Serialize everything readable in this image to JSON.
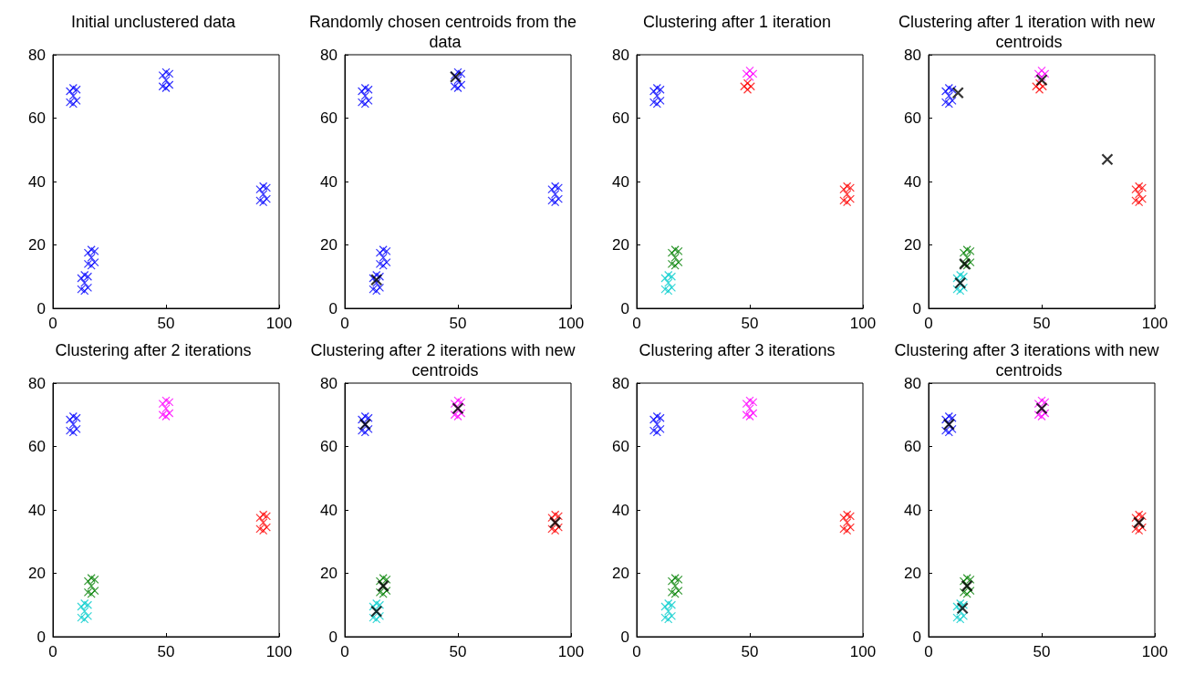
{
  "chart_data": [
    {
      "type": "scatter",
      "title": "Initial unclustered data",
      "xlim": [
        0,
        100
      ],
      "xticks": [
        0,
        50,
        100
      ],
      "ylim": [
        0,
        80
      ],
      "yticks": [
        0,
        20,
        40,
        60,
        80
      ],
      "marker": "cross",
      "series": [
        {
          "color": "#0000ff",
          "x": [
            9,
            7.5,
            10.5,
            7.5,
            10.5,
            9,
            9,
            50,
            48.5,
            51.5,
            48.5,
            51.5,
            50,
            50,
            93,
            91.5,
            94.5,
            91.5,
            94.5,
            93,
            93,
            17,
            15.5,
            18.5,
            15.5,
            18.5,
            17,
            17,
            14,
            12.5,
            15.5,
            12.5,
            15.5,
            14,
            14
          ],
          "values": [
            67,
            65,
            69,
            68.5,
            65.5,
            69.5,
            64.5,
            72,
            70,
            74,
            73.5,
            70.5,
            74.5,
            69.5,
            36,
            34,
            38,
            37.5,
            34.5,
            38.5,
            33.5,
            16,
            14,
            18,
            17.5,
            14.5,
            18.5,
            13.5,
            8,
            6,
            10,
            9.5,
            6.5,
            10.5,
            5.5
          ]
        }
      ]
    },
    {
      "type": "scatter",
      "title": "Randomly chosen centroids from the data",
      "xlim": [
        0,
        100
      ],
      "xticks": [
        0,
        50,
        100
      ],
      "ylim": [
        0,
        80
      ],
      "yticks": [
        0,
        20,
        40,
        60,
        80
      ],
      "marker": "cross",
      "series": [
        {
          "color": "#0000ff",
          "x": [
            9,
            7.5,
            10.5,
            7.5,
            10.5,
            9,
            9,
            50,
            48.5,
            51.5,
            48.5,
            51.5,
            50,
            50,
            93,
            91.5,
            94.5,
            91.5,
            94.5,
            93,
            93,
            17,
            15.5,
            18.5,
            15.5,
            18.5,
            17,
            17,
            14,
            12.5,
            15.5,
            12.5,
            15.5,
            14,
            14
          ],
          "values": [
            67,
            65,
            69,
            68.5,
            65.5,
            69.5,
            64.5,
            72,
            70,
            74,
            73.5,
            70.5,
            74.5,
            69.5,
            36,
            34,
            38,
            37.5,
            34.5,
            38.5,
            33.5,
            16,
            14,
            18,
            17.5,
            14.5,
            18.5,
            13.5,
            8,
            6,
            10,
            9.5,
            6.5,
            10.5,
            5.5
          ]
        },
        {
          "color": "#000000",
          "x": [
            49,
            14
          ],
          "values": [
            73,
            9
          ]
        }
      ]
    },
    {
      "type": "scatter",
      "title": "Clustering after 1 iteration",
      "xlim": [
        0,
        100
      ],
      "xticks": [
        0,
        50,
        100
      ],
      "ylim": [
        0,
        80
      ],
      "yticks": [
        0,
        20,
        40,
        60,
        80
      ],
      "marker": "cross",
      "series": [
        {
          "color": "#0000ff",
          "x": [
            9,
            7.5,
            10.5,
            7.5,
            10.5,
            9,
            9
          ],
          "values": [
            67,
            65,
            69,
            68.5,
            65.5,
            69.5,
            64.5
          ]
        },
        {
          "color": "#ff00ff",
          "x": [
            50,
            48.5,
            51.5,
            50
          ],
          "values": [
            73,
            74,
            74,
            75
          ]
        },
        {
          "color": "#ff0000",
          "x": [
            49,
            47.5,
            50.5,
            49,
            93,
            91.5,
            94.5,
            91.5,
            94.5,
            93,
            93
          ],
          "values": [
            71,
            70,
            70,
            69,
            36,
            34,
            38,
            37.5,
            34.5,
            38.5,
            33.5
          ]
        },
        {
          "color": "#008000",
          "x": [
            17,
            15.5,
            18.5,
            15.5,
            18.5,
            17,
            17
          ],
          "values": [
            16,
            14,
            18,
            17.5,
            14.5,
            18.5,
            13.5
          ]
        },
        {
          "color": "#00cccc",
          "x": [
            14,
            12.5,
            15.5,
            12.5,
            15.5,
            14,
            14
          ],
          "values": [
            8,
            6,
            10,
            9.5,
            6.5,
            10.5,
            5.5
          ]
        }
      ]
    },
    {
      "type": "scatter",
      "title": "Clustering after 1 iteration with new centroids",
      "xlim": [
        0,
        100
      ],
      "xticks": [
        0,
        50,
        100
      ],
      "ylim": [
        0,
        80
      ],
      "yticks": [
        0,
        20,
        40,
        60,
        80
      ],
      "marker": "cross",
      "series": [
        {
          "color": "#0000ff",
          "x": [
            9,
            7.5,
            10.5,
            7.5,
            10.5,
            9,
            9
          ],
          "values": [
            67,
            65,
            69,
            68.5,
            65.5,
            69.5,
            64.5
          ]
        },
        {
          "color": "#ff00ff",
          "x": [
            50,
            48.5,
            51.5,
            50
          ],
          "values": [
            73,
            74,
            74,
            75
          ]
        },
        {
          "color": "#ff0000",
          "x": [
            49,
            47.5,
            50.5,
            49,
            93,
            91.5,
            94.5,
            91.5,
            94.5,
            93,
            93
          ],
          "values": [
            71,
            70,
            70,
            69,
            36,
            34,
            38,
            37.5,
            34.5,
            38.5,
            33.5
          ]
        },
        {
          "color": "#008000",
          "x": [
            17,
            15.5,
            18.5,
            15.5,
            18.5,
            17,
            17
          ],
          "values": [
            16,
            14,
            18,
            17.5,
            14.5,
            18.5,
            13.5
          ]
        },
        {
          "color": "#00cccc",
          "x": [
            14,
            12.5,
            15.5,
            12.5,
            15.5,
            14,
            14
          ],
          "values": [
            8,
            6,
            10,
            9.5,
            6.5,
            10.5,
            5.5
          ]
        },
        {
          "color": "#000000",
          "x": [
            13,
            50,
            79,
            16,
            14
          ],
          "values": [
            68,
            72,
            47,
            14,
            8
          ]
        }
      ]
    },
    {
      "type": "scatter",
      "title": "Clustering after 2 iterations",
      "xlim": [
        0,
        100
      ],
      "xticks": [
        0,
        50,
        100
      ],
      "ylim": [
        0,
        80
      ],
      "yticks": [
        0,
        20,
        40,
        60,
        80
      ],
      "marker": "cross",
      "series": [
        {
          "color": "#0000ff",
          "x": [
            9,
            7.5,
            10.5,
            7.5,
            10.5,
            9,
            9
          ],
          "values": [
            67,
            65,
            69,
            68.5,
            65.5,
            69.5,
            64.5
          ]
        },
        {
          "color": "#ff00ff",
          "x": [
            50,
            48.5,
            51.5,
            48.5,
            51.5,
            50,
            50
          ],
          "values": [
            72,
            70,
            74,
            73.5,
            70.5,
            74.5,
            69.5
          ]
        },
        {
          "color": "#ff0000",
          "x": [
            93,
            91.5,
            94.5,
            91.5,
            94.5,
            93,
            93
          ],
          "values": [
            36,
            34,
            38,
            37.5,
            34.5,
            38.5,
            33.5
          ]
        },
        {
          "color": "#008000",
          "x": [
            17,
            15.5,
            18.5,
            15.5,
            18.5,
            17,
            17
          ],
          "values": [
            16,
            14,
            18,
            17.5,
            14.5,
            18.5,
            13.5
          ]
        },
        {
          "color": "#00cccc",
          "x": [
            14,
            12.5,
            15.5,
            12.5,
            15.5,
            14,
            14
          ],
          "values": [
            8,
            6,
            10,
            9.5,
            6.5,
            10.5,
            5.5
          ]
        }
      ]
    },
    {
      "type": "scatter",
      "title": "Clustering after 2 iterations with new centroids",
      "xlim": [
        0,
        100
      ],
      "xticks": [
        0,
        50,
        100
      ],
      "ylim": [
        0,
        80
      ],
      "yticks": [
        0,
        20,
        40,
        60,
        80
      ],
      "marker": "cross",
      "series": [
        {
          "color": "#0000ff",
          "x": [
            9,
            7.5,
            10.5,
            7.5,
            10.5,
            9,
            9
          ],
          "values": [
            67,
            65,
            69,
            68.5,
            65.5,
            69.5,
            64.5
          ]
        },
        {
          "color": "#ff00ff",
          "x": [
            50,
            48.5,
            51.5,
            48.5,
            51.5,
            50,
            50
          ],
          "values": [
            72,
            70,
            74,
            73.5,
            70.5,
            74.5,
            69.5
          ]
        },
        {
          "color": "#ff0000",
          "x": [
            93,
            91.5,
            94.5,
            91.5,
            94.5,
            93,
            93
          ],
          "values": [
            36,
            34,
            38,
            37.5,
            34.5,
            38.5,
            33.5
          ]
        },
        {
          "color": "#008000",
          "x": [
            17,
            15.5,
            18.5,
            15.5,
            18.5,
            17,
            17
          ],
          "values": [
            16,
            14,
            18,
            17.5,
            14.5,
            18.5,
            13.5
          ]
        },
        {
          "color": "#00cccc",
          "x": [
            14,
            12.5,
            15.5,
            12.5,
            15.5,
            14,
            14
          ],
          "values": [
            8,
            6,
            10,
            9.5,
            6.5,
            10.5,
            5.5
          ]
        },
        {
          "color": "#000000",
          "x": [
            9,
            50,
            93,
            17,
            14
          ],
          "values": [
            67,
            72,
            36,
            16,
            8
          ]
        }
      ]
    },
    {
      "type": "scatter",
      "title": "Clustering after 3 iterations",
      "xlim": [
        0,
        100
      ],
      "xticks": [
        0,
        50,
        100
      ],
      "ylim": [
        0,
        80
      ],
      "yticks": [
        0,
        20,
        40,
        60,
        80
      ],
      "marker": "cross",
      "series": [
        {
          "color": "#0000ff",
          "x": [
            9,
            7.5,
            10.5,
            7.5,
            10.5,
            9,
            9
          ],
          "values": [
            67,
            65,
            69,
            68.5,
            65.5,
            69.5,
            64.5
          ]
        },
        {
          "color": "#ff00ff",
          "x": [
            50,
            48.5,
            51.5,
            48.5,
            51.5,
            50,
            50
          ],
          "values": [
            72,
            70,
            74,
            73.5,
            70.5,
            74.5,
            69.5
          ]
        },
        {
          "color": "#ff0000",
          "x": [
            93,
            91.5,
            94.5,
            91.5,
            94.5,
            93,
            93
          ],
          "values": [
            36,
            34,
            38,
            37.5,
            34.5,
            38.5,
            33.5
          ]
        },
        {
          "color": "#008000",
          "x": [
            17,
            15.5,
            18.5,
            15.5,
            18.5,
            17,
            17
          ],
          "values": [
            16,
            14,
            18,
            17.5,
            14.5,
            18.5,
            13.5
          ]
        },
        {
          "color": "#00cccc",
          "x": [
            14,
            12.5,
            15.5,
            12.5,
            15.5,
            14,
            14
          ],
          "values": [
            8,
            6,
            10,
            9.5,
            6.5,
            10.5,
            5.5
          ]
        }
      ]
    },
    {
      "type": "scatter",
      "title": "Clustering after 3 iterations with new centroids",
      "xlim": [
        0,
        100
      ],
      "xticks": [
        0,
        50,
        100
      ],
      "ylim": [
        0,
        80
      ],
      "yticks": [
        0,
        20,
        40,
        60,
        80
      ],
      "marker": "cross",
      "series": [
        {
          "color": "#0000ff",
          "x": [
            9,
            7.5,
            10.5,
            7.5,
            10.5,
            9,
            9
          ],
          "values": [
            67,
            65,
            69,
            68.5,
            65.5,
            69.5,
            64.5
          ]
        },
        {
          "color": "#ff00ff",
          "x": [
            50,
            48.5,
            51.5,
            48.5,
            51.5,
            50,
            50
          ],
          "values": [
            72,
            70,
            74,
            73.5,
            70.5,
            74.5,
            69.5
          ]
        },
        {
          "color": "#ff0000",
          "x": [
            93,
            91.5,
            94.5,
            91.5,
            94.5,
            93,
            93
          ],
          "values": [
            36,
            34,
            38,
            37.5,
            34.5,
            38.5,
            33.5
          ]
        },
        {
          "color": "#008000",
          "x": [
            17,
            15.5,
            18.5,
            15.5,
            18.5,
            17,
            17
          ],
          "values": [
            16,
            14,
            18,
            17.5,
            14.5,
            18.5,
            13.5
          ]
        },
        {
          "color": "#00cccc",
          "x": [
            14,
            12.5,
            15.5,
            12.5,
            15.5,
            14,
            14
          ],
          "values": [
            8,
            6,
            10,
            9.5,
            6.5,
            10.5,
            5.5
          ]
        },
        {
          "color": "#000000",
          "x": [
            9,
            50,
            93,
            17,
            15
          ],
          "values": [
            67,
            72,
            36,
            16,
            9
          ]
        }
      ]
    }
  ]
}
